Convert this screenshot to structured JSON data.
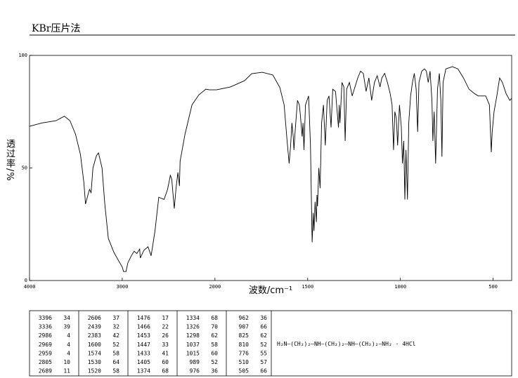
{
  "chart_data": {
    "type": "line",
    "title": "KBr压片法",
    "xlabel": "波数/cm⁻¹",
    "ylabel": "透过率/%",
    "xlim": [
      4000,
      400
    ],
    "ylim": [
      0,
      100
    ],
    "x_scale_break": 2000,
    "x_scale_factor": 2,
    "xticks": [
      4000,
      3000,
      2000,
      1500,
      1000,
      500
    ],
    "yticks": [
      0,
      50,
      100
    ],
    "color": "#000000",
    "x": [
      4000,
      3865,
      3714,
      3624,
      3564,
      3504,
      3451,
      3414,
      3396,
      3370,
      3353,
      3336,
      3316,
      3278,
      3256,
      3218,
      3188,
      3150,
      3090,
      3038,
      3000,
      2986,
      2969,
      2959,
      2940,
      2902,
      2872,
      2842,
      2812,
      2805,
      2767,
      2722,
      2689,
      2677,
      2647,
      2606,
      2549,
      2511,
      2481,
      2466,
      2439,
      2421,
      2400,
      2383,
      2376,
      2323,
      2248,
      2173,
      2098,
      2060,
      1992,
      1916,
      1840,
      1802,
      1745,
      1688,
      1650,
      1627,
      1611,
      1600,
      1592,
      1585,
      1578,
      1574,
      1568,
      1555,
      1545,
      1540,
      1530,
      1525,
      1520,
      1512,
      1495,
      1485,
      1476,
      1470,
      1466,
      1460,
      1453,
      1450,
      1447,
      1440,
      1433,
      1425,
      1415,
      1405,
      1395,
      1385,
      1374,
      1365,
      1350,
      1334,
      1330,
      1326,
      1315,
      1305,
      1298,
      1290,
      1275,
      1260,
      1245,
      1230,
      1215,
      1200,
      1185,
      1170,
      1155,
      1140,
      1125,
      1110,
      1100,
      1085,
      1070,
      1055,
      1045,
      1037,
      1030,
      1022,
      1015,
      1005,
      995,
      989,
      982,
      976,
      970,
      962,
      955,
      945,
      935,
      925,
      915,
      907,
      900,
      885,
      870,
      860,
      850,
      840,
      830,
      825,
      818,
      810,
      800,
      790,
      782,
      776,
      770,
      755,
      720,
      690,
      660,
      630,
      600,
      580,
      560,
      540,
      520,
      510,
      505,
      495,
      480,
      465,
      450,
      430,
      410,
      400
    ],
    "values": [
      68.5,
      70,
      71,
      73,
      71,
      65,
      56,
      43.6,
      34,
      38,
      40.5,
      39,
      50,
      55.5,
      56.7,
      50,
      34,
      18.7,
      12.5,
      8.7,
      6,
      4,
      4,
      4,
      7.8,
      11,
      13,
      12,
      14,
      10,
      13.4,
      15,
      11,
      14,
      22,
      37,
      36,
      40.5,
      46.7,
      45,
      32,
      40.5,
      48,
      42,
      53,
      65,
      78,
      82.5,
      85,
      84.7,
      84.7,
      86,
      88.8,
      91.9,
      92.5,
      91.3,
      85.7,
      78,
      62,
      52,
      60,
      70,
      64,
      58,
      66,
      80,
      78,
      74,
      64,
      70,
      58,
      78,
      82,
      60,
      17,
      30,
      22,
      35,
      26,
      38,
      33,
      50,
      41,
      70,
      78,
      60,
      80,
      82,
      68,
      85,
      84,
      68,
      78,
      70,
      88,
      86,
      62,
      85,
      88,
      82,
      86,
      90,
      93,
      92,
      84,
      90,
      80,
      88,
      91,
      86,
      90,
      92,
      88,
      83,
      78,
      58,
      75,
      72,
      60,
      78,
      68,
      52,
      62,
      36,
      58,
      36,
      70,
      82,
      88,
      92,
      85,
      66,
      88,
      93,
      94,
      93,
      88,
      93,
      80,
      62,
      75,
      52,
      85,
      92,
      80,
      55,
      88,
      94,
      95,
      94,
      90,
      85,
      83,
      82,
      82,
      82,
      78,
      57,
      66,
      75,
      82,
      90,
      88,
      83,
      80,
      81
    ]
  },
  "peak_table": {
    "groups": [
      [
        [
          "3396",
          "34"
        ],
        [
          "3336",
          "39"
        ],
        [
          "2986",
          "4"
        ],
        [
          "2969",
          "4"
        ],
        [
          "2959",
          "4"
        ],
        [
          "2805",
          "10"
        ],
        [
          "2689",
          "11"
        ]
      ],
      [
        [
          "2606",
          "37"
        ],
        [
          "2439",
          "32"
        ],
        [
          "2383",
          "42"
        ],
        [
          "1600",
          "52"
        ],
        [
          "1574",
          "58"
        ],
        [
          "1530",
          "64"
        ],
        [
          "1520",
          "58"
        ]
      ],
      [
        [
          "1476",
          "17"
        ],
        [
          "1466",
          "22"
        ],
        [
          "1453",
          "26"
        ],
        [
          "1447",
          "33"
        ],
        [
          "1433",
          "41"
        ],
        [
          "1405",
          "60"
        ],
        [
          "1374",
          "68"
        ]
      ],
      [
        [
          "1334",
          "68"
        ],
        [
          "1326",
          "70"
        ],
        [
          "1298",
          "62"
        ],
        [
          "1037",
          "58"
        ],
        [
          "1015",
          "60"
        ],
        [
          "989",
          "52"
        ],
        [
          "976",
          "36"
        ]
      ],
      [
        [
          "962",
          "36"
        ],
        [
          "907",
          "66"
        ],
        [
          "825",
          "62"
        ],
        [
          "810",
          "52"
        ],
        [
          "776",
          "55"
        ],
        [
          "510",
          "57"
        ],
        [
          "505",
          "66"
        ]
      ]
    ],
    "structure": "H₂N—(CH₂)₂—NH—(CH₂)₂—NH—(CH₂)₂—NH₂ · 4HCl"
  }
}
